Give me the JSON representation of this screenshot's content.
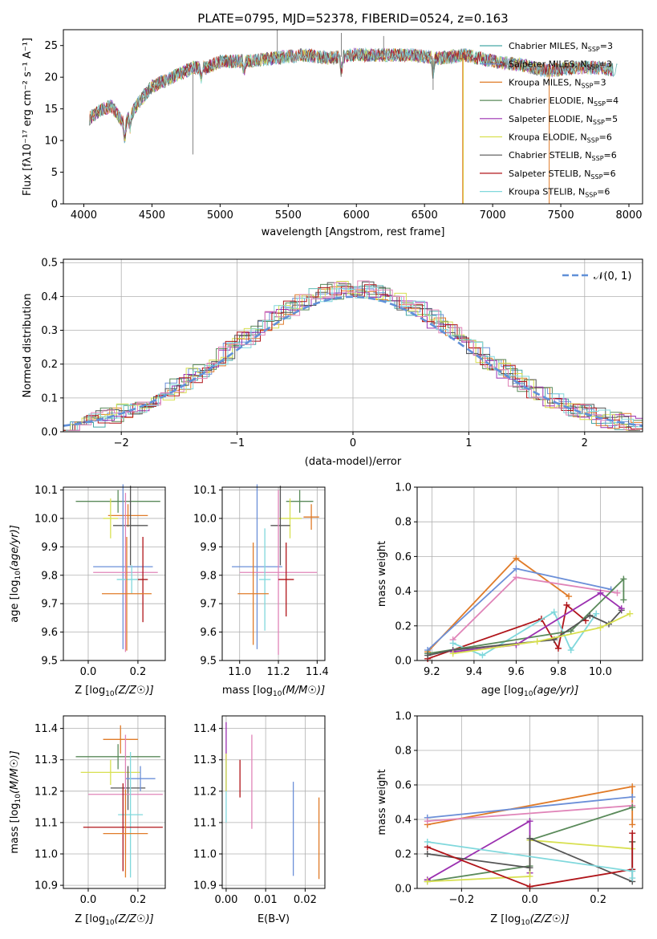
{
  "colors": {
    "chabrier_miles": "#48a9a6",
    "salpeter_miles": "#6b8fd8",
    "kroupa_miles": "#e07b28",
    "chabrier_elodie": "#5a8a5a",
    "salpeter_elodie": "#9b30b0",
    "kroupa_elodie": "#d8e050",
    "chabrier_stelib": "#555555",
    "salpeter_stelib": "#b0151a",
    "kroupa_stelib": "#80d8dc",
    "pink": "#e084b8",
    "normal_curve": "#6090d8"
  },
  "chart_data": [
    {
      "type": "line",
      "title": "PLATE=0795, MJD=52378, FIBERID=0524, z=0.163",
      "xlabel": "wavelength [Angstrom, rest frame]",
      "ylabel": "Flux [fλ10⁻¹⁷ erg cm⁻² s⁻¹ A⁻¹]",
      "xlim": [
        3850,
        8100
      ],
      "ylim": [
        0,
        27.5
      ],
      "xticks": [
        4000,
        4500,
        5000,
        5500,
        6000,
        6500,
        7000,
        7500,
        8000
      ],
      "yticks": [
        0,
        5,
        10,
        15,
        20,
        25
      ],
      "grid": false,
      "legend_position": "top-right",
      "continuum": {
        "x": [
          4040,
          4100,
          4200,
          4300,
          4400,
          4500,
          4600,
          4700,
          4800,
          4900,
          5000,
          5200,
          5400,
          5600,
          5800,
          6000,
          6200,
          6400,
          6600,
          6800,
          7000,
          7200,
          7400,
          7600,
          7800,
          7920
        ],
        "y": [
          13.5,
          14.5,
          15.5,
          12.5,
          16,
          18.5,
          19.5,
          20.5,
          21.5,
          21.5,
          22.5,
          22.5,
          23,
          23.5,
          23,
          23.5,
          23.5,
          23.5,
          23,
          23.5,
          22.5,
          22,
          21,
          21.5,
          21.5,
          21
        ]
      },
      "series": [
        {
          "name": "Chabrier MILES, N_SSP=3"
        },
        {
          "name": "Salpeter MILES, N_SSP=3"
        },
        {
          "name": "Kroupa MILES, N_SSP=3"
        },
        {
          "name": "Chabrier ELODIE, N_SSP=4"
        },
        {
          "name": "Salpeter ELODIE, N_SSP=5"
        },
        {
          "name": "Kroupa ELODIE, N_SSP=6"
        },
        {
          "name": "Chabrier STELIB, N_SSP=6"
        },
        {
          "name": "Salpeter STELIB, N_SSP=6"
        },
        {
          "name": "Kroupa STELIB, N_SSP=6"
        }
      ]
    },
    {
      "type": "bar",
      "xlabel": "(data-model)/error",
      "ylabel": "Normed distribution",
      "xlim": [
        -2.5,
        2.5
      ],
      "ylim": [
        0,
        0.51
      ],
      "xticks": [
        -2,
        -1,
        0,
        1,
        2
      ],
      "yticks": [
        0.0,
        0.1,
        0.2,
        0.3,
        0.4,
        0.5
      ],
      "grid": true,
      "legend_position": "top-right",
      "legend_label": "𝒩(0, 1)",
      "bin_width": 0.1
    },
    {
      "type": "scatter",
      "xlabel": "Z [log10(Z/Z☉)]",
      "ylabel": "age [log10(age/yr)]",
      "xlim": [
        -0.1,
        0.31
      ],
      "ylim": [
        9.5,
        10.11
      ],
      "xticks": [
        0.0,
        0.2
      ],
      "yticks": [
        9.5,
        9.6,
        9.7,
        9.8,
        9.9,
        10.0,
        10.1
      ],
      "points": [
        {
          "x": 0.12,
          "y": 10.06,
          "xerr": 0.17,
          "yerr": 0.04
        },
        {
          "x": 0.16,
          "y": 10.01,
          "xerr": 0.08,
          "yerr": 0.04
        },
        {
          "x": 0.09,
          "y": 10.0,
          "xerr": 0.03,
          "yerr": 0.07
        },
        {
          "x": 0.17,
          "y": 9.975,
          "xerr": 0.07,
          "yerr": 0.14
        },
        {
          "x": 0.14,
          "y": 9.83,
          "xerr": 0.12,
          "yerr": 0.29
        },
        {
          "x": 0.15,
          "y": 9.81,
          "xerr": 0.13,
          "yerr": 0.28
        },
        {
          "x": 0.175,
          "y": 9.785,
          "xerr": 0.06,
          "yerr": 0.05
        },
        {
          "x": 0.22,
          "y": 9.785,
          "xerr": 0.02,
          "yerr": 0.15
        },
        {
          "x": 0.155,
          "y": 9.735,
          "xerr": 0.1,
          "yerr": 0.2
        }
      ]
    },
    {
      "type": "scatter",
      "xlabel": "mass [log10(M/M☉)]",
      "xlim": [
        10.91,
        11.44
      ],
      "ylim": [
        9.5,
        10.11
      ],
      "xticks": [
        11.0,
        11.2,
        11.4
      ],
      "yticks": [
        9.5,
        9.6,
        9.7,
        9.8,
        9.9,
        10.0,
        10.1
      ],
      "points": [
        {
          "x": 11.31,
          "y": 10.06,
          "xerr": 0.07,
          "yerr": 0.04
        },
        {
          "x": 11.37,
          "y": 10.005,
          "xerr": 0.04,
          "yerr": 0.045
        },
        {
          "x": 11.26,
          "y": 10.0,
          "xerr": 0.06,
          "yerr": 0.07
        },
        {
          "x": 11.21,
          "y": 9.975,
          "xerr": 0.05,
          "yerr": 0.14
        },
        {
          "x": 11.09,
          "y": 9.83,
          "xerr": 0.13,
          "yerr": 0.29
        },
        {
          "x": 11.2,
          "y": 9.81,
          "xerr": 0.2,
          "yerr": 0.29
        },
        {
          "x": 11.13,
          "y": 9.785,
          "xerr": 0.03,
          "yerr": 0.18
        },
        {
          "x": 11.24,
          "y": 9.785,
          "xerr": 0.04,
          "yerr": 0.13
        },
        {
          "x": 11.07,
          "y": 9.735,
          "xerr": 0.08,
          "yerr": 0.18
        }
      ]
    },
    {
      "type": "line",
      "xlabel": "age [log10(age/yr)]",
      "ylabel": "mass weight",
      "xlim": [
        9.13,
        10.2
      ],
      "ylim": [
        0,
        1.0
      ],
      "xticks": [
        9.2,
        9.4,
        9.6,
        9.8,
        10.0
      ],
      "yticks": [
        0.0,
        0.2,
        0.4,
        0.6,
        0.8,
        1.0
      ],
      "grid": true,
      "series": [
        {
          "color_key": "kroupa_miles",
          "x": [
            9.18,
            9.6,
            9.85
          ],
          "y": [
            0.05,
            0.59,
            0.37
          ]
        },
        {
          "color_key": "salpeter_miles",
          "x": [
            9.18,
            9.6,
            10.05
          ],
          "y": [
            0.06,
            0.53,
            0.41
          ]
        },
        {
          "color_key": "pink",
          "x": [
            9.3,
            9.6,
            10.08
          ],
          "y": [
            0.12,
            0.48,
            0.39
          ]
        },
        {
          "color_key": "salpeter_stelib",
          "x": [
            9.18,
            9.72,
            9.8,
            9.84,
            9.93
          ],
          "y": [
            0.01,
            0.24,
            0.07,
            0.32,
            0.23
          ]
        },
        {
          "color_key": "kroupa_stelib",
          "x": [
            9.3,
            9.44,
            9.78,
            9.86,
            9.98
          ],
          "y": [
            0.1,
            0.03,
            0.28,
            0.06,
            0.27
          ]
        },
        {
          "color_key": "chabrier_elodie",
          "x": [
            9.18,
            9.86,
            10.11,
            10.11
          ],
          "y": [
            0.04,
            0.17,
            0.47,
            0.35
          ]
        },
        {
          "color_key": "chabrier_stelib",
          "x": [
            9.18,
            9.3,
            9.78,
            9.95,
            10.04,
            10.1
          ],
          "y": [
            0.03,
            0.06,
            0.12,
            0.26,
            0.21,
            0.29
          ]
        },
        {
          "color_key": "salpeter_elodie",
          "x": [
            9.3,
            9.6,
            10.0,
            10.1
          ],
          "y": [
            0.05,
            0.09,
            0.39,
            0.3
          ]
        },
        {
          "color_key": "kroupa_elodie",
          "x": [
            9.3,
            9.7,
            10.0,
            10.14
          ],
          "y": [
            0.04,
            0.11,
            0.19,
            0.27
          ]
        }
      ]
    },
    {
      "type": "scatter",
      "xlabel": "Z [log10(Z/Z☉)]",
      "ylabel": "mass [log10(M/M☉)]",
      "xlim": [
        -0.1,
        0.31
      ],
      "ylim": [
        10.89,
        11.44
      ],
      "xticks": [
        0.0,
        0.2
      ],
      "yticks": [
        10.9,
        11.0,
        11.1,
        11.2,
        11.3,
        11.4
      ],
      "points": [
        {
          "x": 0.12,
          "y": 11.31,
          "xerr": 0.17,
          "yerr": 0.04
        },
        {
          "x": 0.13,
          "y": 11.365,
          "xerr": 0.07,
          "yerr": 0.045
        },
        {
          "x": 0.09,
          "y": 11.26,
          "xerr": 0.12,
          "yerr": 0.04
        },
        {
          "x": 0.16,
          "y": 11.21,
          "xerr": 0.07,
          "yerr": 0.07
        },
        {
          "x": 0.21,
          "y": 11.24,
          "xerr": 0.06,
          "yerr": 0.04
        },
        {
          "x": 0.15,
          "y": 11.19,
          "xerr": 0.15,
          "yerr": 0.19
        },
        {
          "x": 0.17,
          "y": 11.125,
          "xerr": 0.05,
          "yerr": 0.2
        },
        {
          "x": 0.14,
          "y": 11.085,
          "xerr": 0.16,
          "yerr": 0.14
        },
        {
          "x": 0.15,
          "y": 11.065,
          "xerr": 0.09,
          "yerr": 0.14
        }
      ]
    },
    {
      "type": "scatter",
      "xlabel": "E(B-V)",
      "xlim": [
        -0.001,
        0.025
      ],
      "ylim": [
        10.89,
        11.44
      ],
      "xticks": [
        0.0,
        0.01,
        0.02
      ],
      "yticks": [
        10.9,
        11.0,
        11.1,
        11.2,
        11.3,
        11.4
      ],
      "points": [
        {
          "x": 0.0,
          "y": 11.31,
          "yerr": 0.11,
          "color_key": "salpeter_elodie"
        },
        {
          "x": 0.0,
          "y": 11.2,
          "yerr": 0.1,
          "color_key": "kroupa_stelib"
        },
        {
          "x": 0.0,
          "y": 11.26,
          "yerr": 0.06,
          "color_key": "kroupa_elodie"
        },
        {
          "x": 0.0035,
          "y": 11.24,
          "yerr": 0.06,
          "color_key": "salpeter_stelib"
        },
        {
          "x": 0.0065,
          "y": 11.23,
          "yerr": 0.15,
          "color_key": "pink"
        },
        {
          "x": 0.017,
          "y": 11.08,
          "yerr": 0.15,
          "color_key": "salpeter_miles"
        },
        {
          "x": 0.0235,
          "y": 11.05,
          "yerr": 0.13,
          "color_key": "kroupa_miles"
        }
      ]
    },
    {
      "type": "line",
      "xlabel": "Z [log10(Z/Z☉)]",
      "ylabel": "mass weight",
      "xlim": [
        -0.33,
        0.33
      ],
      "ylim": [
        0,
        1.0
      ],
      "xticks": [
        -0.2,
        0.0,
        0.2
      ],
      "yticks": [
        0.0,
        0.2,
        0.4,
        0.6,
        0.8,
        1.0
      ],
      "grid": true,
      "series": [
        {
          "color_key": "kroupa_miles",
          "x": [
            -0.3,
            0.3,
            0.3
          ],
          "y": [
            0.37,
            0.59,
            0.37
          ]
        },
        {
          "color_key": "salpeter_miles",
          "x": [
            -0.3,
            0.3
          ],
          "y": [
            0.41,
            0.53
          ]
        },
        {
          "color_key": "pink",
          "x": [
            -0.3,
            0.3
          ],
          "y": [
            0.39,
            0.48
          ]
        },
        {
          "color_key": "chabrier_elodie",
          "x": [
            -0.3,
            0.0,
            0.0,
            0.3
          ],
          "y": [
            0.04,
            0.13,
            0.28,
            0.47
          ]
        },
        {
          "color_key": "salpeter_elodie",
          "x": [
            -0.3,
            0.0,
            0.0
          ],
          "y": [
            0.05,
            0.39,
            0.09
          ]
        },
        {
          "color_key": "kroupa_elodie",
          "x": [
            -0.3,
            0.0,
            0.0,
            0.3,
            0.3
          ],
          "y": [
            0.04,
            0.07,
            0.28,
            0.23,
            0.27
          ]
        },
        {
          "color_key": "chabrier_stelib",
          "x": [
            -0.3,
            0.0,
            0.0,
            0.3,
            0.3
          ],
          "y": [
            0.2,
            0.12,
            0.29,
            0.04,
            0.27
          ]
        },
        {
          "color_key": "salpeter_stelib",
          "x": [
            -0.3,
            0.0,
            0.3,
            0.3
          ],
          "y": [
            0.24,
            0.01,
            0.11,
            0.32
          ]
        },
        {
          "color_key": "kroupa_stelib",
          "x": [
            -0.3,
            0.3,
            0.3
          ],
          "y": [
            0.27,
            0.1,
            0.06
          ]
        }
      ]
    }
  ]
}
